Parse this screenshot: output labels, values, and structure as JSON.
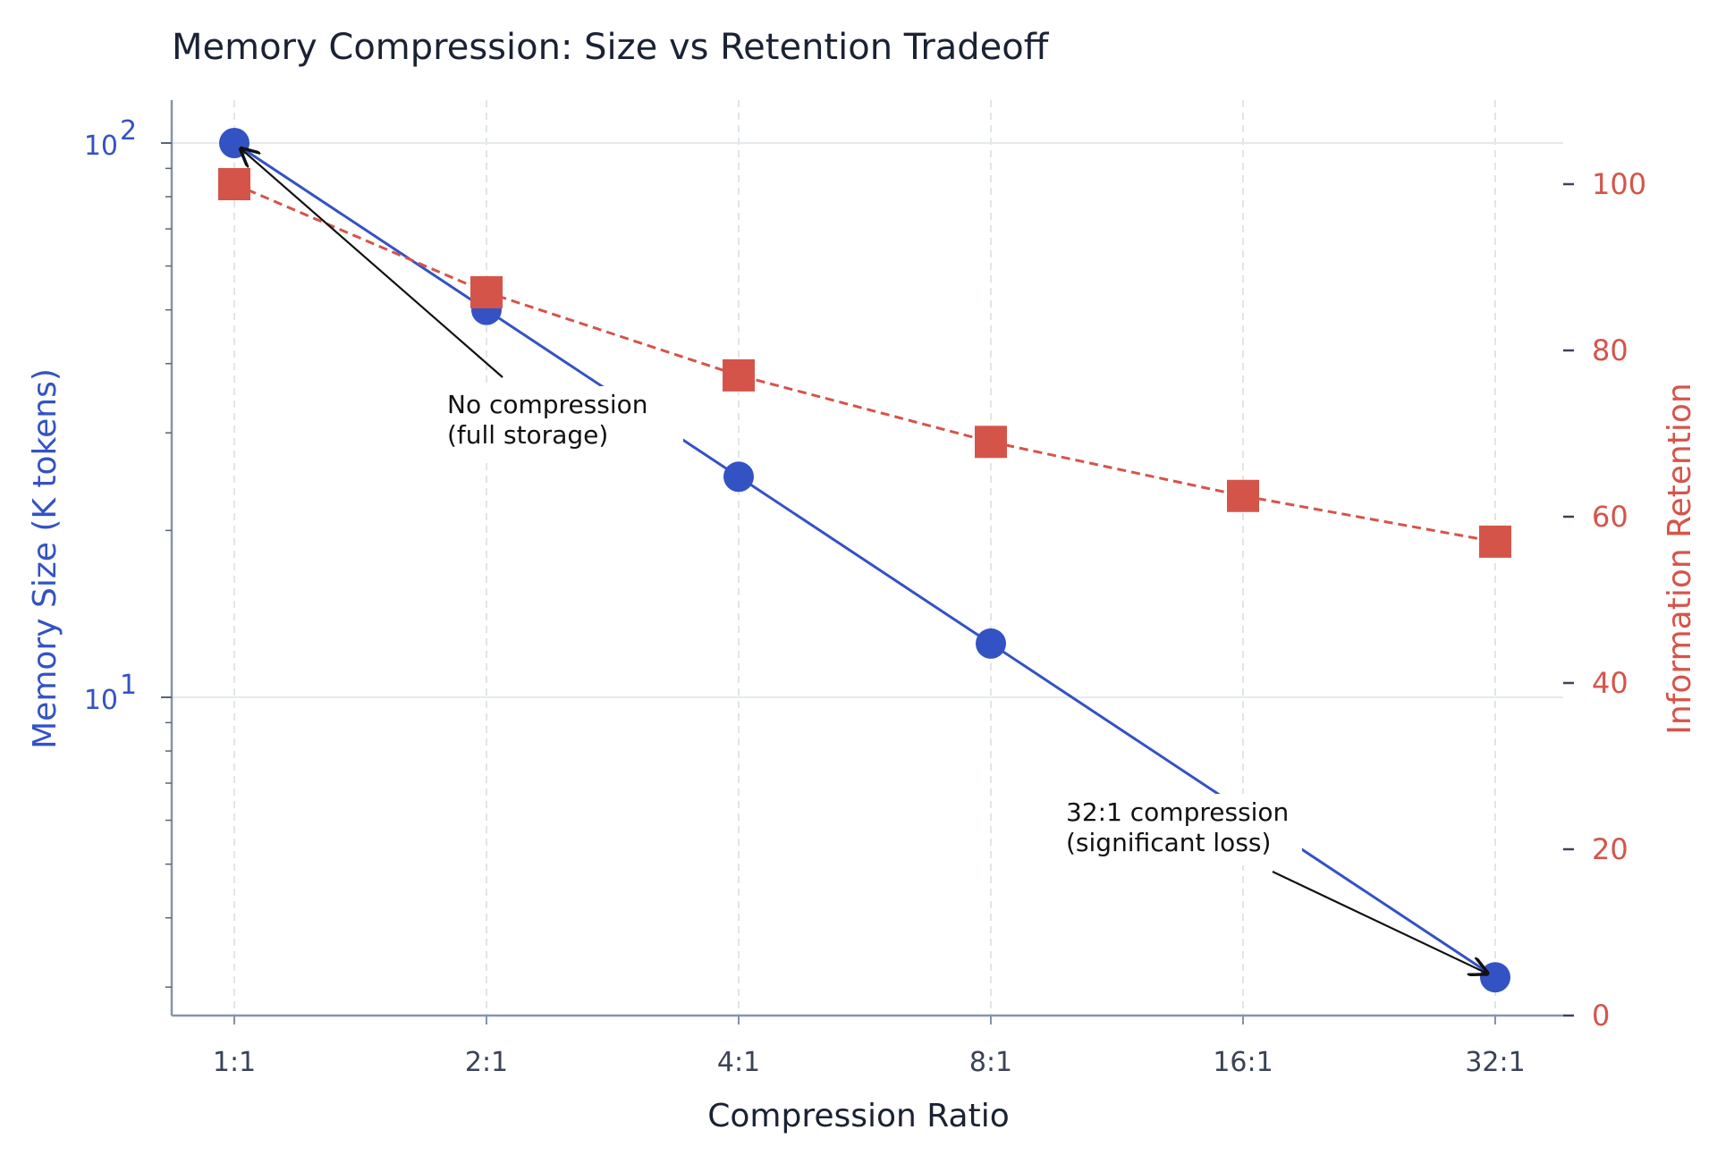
{
  "chart_data": {
    "type": "line",
    "title": "Memory Compression: Size vs Retention Tradeoff",
    "xlabel": "Compression Ratio",
    "ylabel_left": "Memory Size (K tokens)",
    "ylabel_right": "Information Retention",
    "categories": [
      "1:1",
      "2:1",
      "4:1",
      "8:1",
      "16:1",
      "32:1"
    ],
    "y_left_scale": "log",
    "y_left_ticks": [
      {
        "value": 10,
        "base": "10",
        "exp": "1"
      },
      {
        "value": 100,
        "base": "10",
        "exp": "2"
      }
    ],
    "y_right_ticks": [
      "0",
      "20",
      "40",
      "60",
      "80",
      "100"
    ],
    "y_right_lim": [
      0,
      100
    ],
    "grid": true,
    "series": [
      {
        "axis": "left",
        "color": "#3352c4",
        "marker": "circle",
        "line_style": "solid",
        "values": [
          100,
          50,
          25,
          12.5,
          6.25,
          3.125
        ]
      },
      {
        "axis": "right",
        "color": "#d5544a",
        "marker": "square",
        "line_style": "dashed",
        "values": [
          100,
          87,
          77,
          69,
          62.5,
          57
        ]
      }
    ],
    "annotations": [
      {
        "lines": [
          "No compression",
          "(full storage)"
        ],
        "target_category": "1:1",
        "target_series": 0
      },
      {
        "lines": [
          "32:1 compression",
          "(significant loss)"
        ],
        "target_category": "32:1",
        "target_series": 0
      }
    ]
  }
}
